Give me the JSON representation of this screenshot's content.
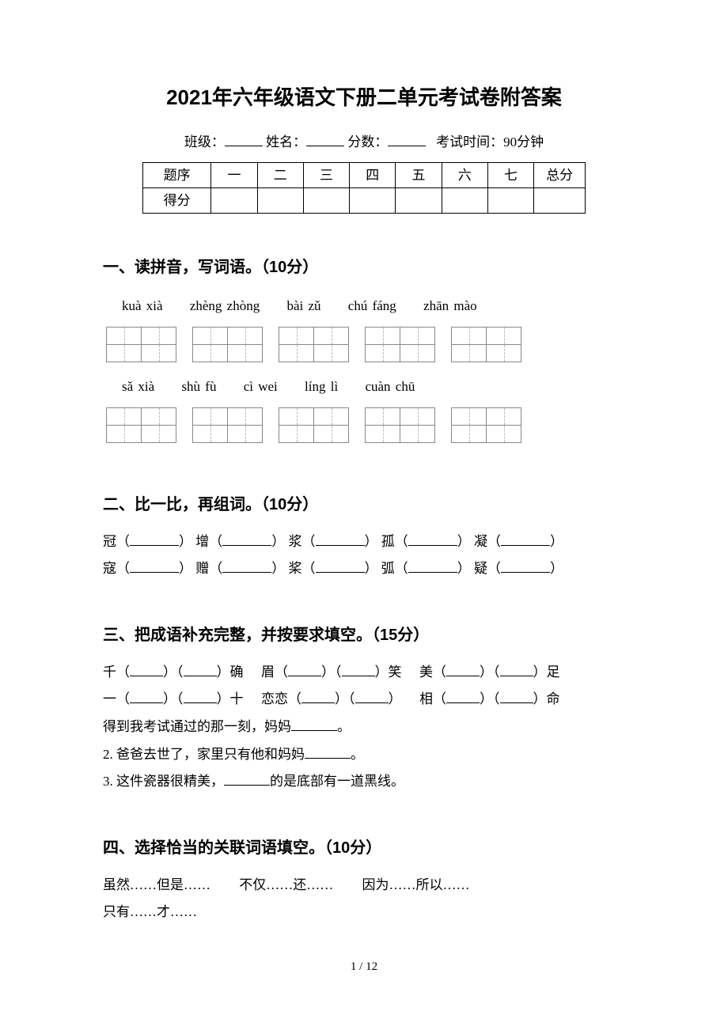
{
  "title": "2021年六年级语文下册二单元考试卷附答案",
  "info": {
    "class_label": "班级：",
    "name_label": "姓名：",
    "score_label": "分数：",
    "time_label": "考试时间：90分钟"
  },
  "score_table": {
    "row_label": "题序",
    "score_row_label": "得分",
    "cols": [
      "一",
      "二",
      "三",
      "四",
      "五",
      "六",
      "七",
      "总分"
    ]
  },
  "s1": {
    "heading": "一、读拼音，写词语。（10分）",
    "row1": [
      "kuà xià",
      "zhèng zhòng",
      "bài zǔ",
      "chú fáng",
      "zhān mào"
    ],
    "row2": [
      "sǎ  xià",
      "shù fù",
      "cì wei",
      "líng lì",
      "cuàn chū"
    ]
  },
  "s2": {
    "heading": "二、比一比，再组词。（10分）",
    "line1": [
      {
        "char": "冠"
      },
      {
        "char": "增"
      },
      {
        "char": "浆"
      },
      {
        "char": "孤"
      },
      {
        "char": "凝"
      }
    ],
    "line2": [
      {
        "char": "寇"
      },
      {
        "char": "赠"
      },
      {
        "char": "桨"
      },
      {
        "char": "弧"
      },
      {
        "char": "疑"
      }
    ]
  },
  "s3": {
    "heading": "三、把成语补充完整，并按要求填空。（15分）",
    "groups_line1": [
      {
        "pre": "千",
        "mid": "",
        "suf": "确"
      },
      {
        "pre": "眉",
        "mid": "",
        "suf": "笑"
      },
      {
        "pre": "美",
        "mid": "",
        "suf": "足"
      }
    ],
    "groups_line2": [
      {
        "pre": "一",
        "mid": "",
        "suf": "十"
      },
      {
        "pre": "恋恋",
        "mid": "",
        "suf": ""
      },
      {
        "pre": "相",
        "mid": "",
        "suf": "命"
      }
    ],
    "q1": "得到我考试通过的那一刻，妈妈",
    "q1_tail": "。",
    "q2": "2. 爸爸去世了，家里只有他和妈妈",
    "q2_tail": "。",
    "q3_a": "3. 这件瓷器很精美，",
    "q3_b": "的是底部有一道黑线。"
  },
  "s4": {
    "heading": "四、选择恰当的关联词语填空。（10分）",
    "items": [
      "虽然……但是……",
      "不仅……还……",
      "因为……所以……",
      "只有……才……"
    ]
  },
  "pagenum": "1 / 12",
  "colors": {
    "text": "#000000",
    "background": "#ffffff",
    "grid_border": "#888888",
    "grid_dash": "#bbbbbb"
  }
}
